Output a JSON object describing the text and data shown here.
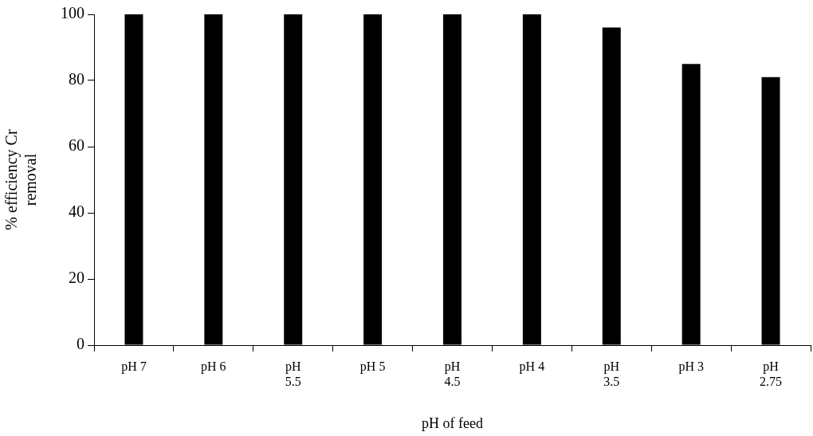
{
  "chart_data": {
    "type": "bar",
    "xlabel": "pH of feed",
    "ylabel": "% efficiency Cr removal",
    "categories": [
      "pH 7",
      "pH 6",
      "pH 5.5",
      "pH 5",
      "pH 4.5",
      "pH 4",
      "pH 3.5",
      "pH 3",
      "pH 2.75"
    ],
    "values": [
      100,
      100,
      100,
      100,
      100,
      100,
      96,
      85,
      81
    ],
    "color": "#000000",
    "ylim": [
      0,
      100
    ],
    "yticks": [
      0,
      20,
      40,
      60,
      80,
      100
    ],
    "grid": false,
    "legend": false
  }
}
